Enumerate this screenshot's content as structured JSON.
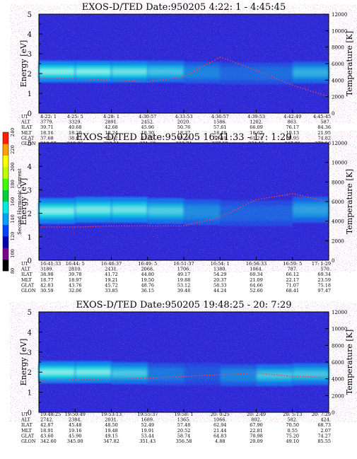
{
  "colors": {
    "background": "#2a2ad8",
    "band_core": "#d8fff0",
    "band_mid": "#10d8d8",
    "band_outer": "#1880f0",
    "temperature_dots": "#ff4040",
    "frame": "#000000"
  },
  "colorbar": {
    "label": "Second Harmonic Current",
    "ticks": [
      "80",
      "100",
      "120",
      "140",
      "160",
      "180",
      "200",
      "220",
      "240"
    ],
    "colors": [
      "#000000",
      "#7a0090",
      "#0000b0",
      "#0040ff",
      "#00a0ff",
      "#00e8e8",
      "#00d040",
      "#40ff00",
      "#c0ff00",
      "#ffff00",
      "#ffa000",
      "#ff2000"
    ]
  },
  "chart_data": [
    {
      "type": "heatmap",
      "title": "EXOS-D/TED   Date:950205  4:22: 1 - 4:45:45",
      "ylabel": "Energy [eV]",
      "y2label": "Temperature [K]",
      "ylim": [
        0,
        5
      ],
      "y2lim": [
        0,
        12000
      ],
      "yticks": [
        "0",
        "1",
        "2",
        "3",
        "4",
        "5"
      ],
      "y2ticks": [
        "0",
        "2000",
        "4000",
        "6000",
        "8000",
        "10000",
        "12000"
      ],
      "table_rows": [
        {
          "label": "UT",
          "values": [
            "4:22: 1",
            "4:25: 5",
            "4:28: 1",
            "4:30:57",
            "4:33:53",
            "4:36:57",
            "4:39:53",
            "4:42:49",
            "4:45:45"
          ]
        },
        {
          "label": "ALT",
          "values": [
            "3779.",
            "3329.",
            "2891.",
            "2452.",
            "2020.",
            "1586.",
            "1202.",
            "863.",
            "587."
          ]
        },
        {
          "label": "ILAT",
          "values": [
            "39.71",
            "40.68",
            "42.68",
            "45.96",
            "50.76",
            "57.61",
            "66.09",
            "76.17",
            "84.36"
          ]
        },
        {
          "label": "MLT",
          "values": [
            "18.16",
            "18.20",
            "18.24",
            "18.30",
            "18.37",
            "18.48",
            "18.67",
            "19.13",
            "21.95"
          ]
        },
        {
          "label": "GLAT",
          "values": [
            "37.68",
            "38.67",
            "40.62",
            "43.75",
            "48.16",
            "54.19",
            "61.24",
            "68.95",
            "74.82"
          ]
        },
        {
          "label": "GLON",
          "values": [
            "219.87",
            "219.96",
            "220.51",
            "221.68",
            "223.74",
            "227.50",
            "234.15",
            "247.91",
            "279.50"
          ]
        }
      ],
      "band_energy": [
        2.1,
        2.1,
        2.1,
        2.1,
        2.1,
        2.0,
        2.0,
        2.0,
        2.1
      ],
      "band_intensity": [
        0.95,
        0.95,
        0.9,
        0.75,
        0.5,
        0.25,
        0.25,
        0.3,
        0.75
      ],
      "temperature": [
        4200,
        4200,
        4000,
        3800,
        4400,
        6800,
        5200,
        3400,
        2000
      ]
    },
    {
      "type": "heatmap",
      "title": "EXOS-D/TED   Date:950205  16:41:33 - 17: 1:29",
      "ylabel": "Energy [eV]",
      "y2label": "Temperature [K]",
      "ylim": [
        0,
        5
      ],
      "y2lim": [
        0,
        12000
      ],
      "yticks": [
        "0",
        "1",
        "2",
        "3",
        "4",
        "5"
      ],
      "y2ticks": [
        "0",
        "2000",
        "4000",
        "6000",
        "8000",
        "10000",
        "12000"
      ],
      "table_rows": [
        {
          "label": "UT",
          "values": [
            "16:41:33",
            "16:44: 5",
            "16:46:37",
            "16:49: 5",
            "16:51:37",
            "16:54: 1",
            "16:56:33",
            "16:59: 5",
            "17: 1:29"
          ]
        },
        {
          "label": "ALT",
          "values": [
            "3189.",
            "2810.",
            "2431.",
            "2068.",
            "1706.",
            "1380.",
            "1064.",
            "787.",
            "570."
          ]
        },
        {
          "label": "ILAT",
          "values": [
            "38.98",
            "39.78",
            "41.72",
            "44.80",
            "49.17",
            "54.29",
            "60.34",
            "66.12",
            "69.34"
          ]
        },
        {
          "label": "MLT",
          "values": [
            "18.77",
            "18.97",
            "19.21",
            "19.50",
            "19.88",
            "20.37",
            "21.09",
            "22.17",
            "23.59"
          ]
        },
        {
          "label": "GLAT",
          "values": [
            "42.83",
            "43.76",
            "45.72",
            "48.76",
            "53.12",
            "58.33",
            "64.66",
            "71.07",
            "75.18"
          ]
        },
        {
          "label": "GLON",
          "values": [
            "30.59",
            "32.06",
            "33.85",
            "36.15",
            "39.48",
            "44.24",
            "52.60",
            "68.41",
            "97.47"
          ]
        }
      ],
      "band_energy": [
        2.1,
        2.1,
        2.2,
        2.1,
        2.1,
        2.0,
        2.0,
        2.0,
        2.3
      ],
      "band_intensity": [
        0.95,
        0.9,
        0.85,
        0.8,
        0.55,
        0.25,
        0.2,
        0.25,
        0.7
      ],
      "temperature": [
        3400,
        3400,
        3500,
        3500,
        3500,
        4400,
        6200,
        6800,
        6000
      ]
    },
    {
      "type": "heatmap",
      "title": "EXOS-D/TED   Date:950205  19:48:25 - 20: 7:29",
      "ylabel": "Energy [eV]",
      "y2label": "Temperature [K]",
      "ylim": [
        0,
        5
      ],
      "y2lim": [
        0,
        12000
      ],
      "yticks": [
        "0",
        "1",
        "2",
        "3",
        "4",
        "5"
      ],
      "y2ticks": [
        "0",
        "2000",
        "4000",
        "6000",
        "8000",
        "10000",
        "12000"
      ],
      "table_rows": [
        {
          "label": "UT",
          "values": [
            "19:48:25",
            "19:50:49",
            "19:53:13",
            "19:55:37",
            "19:58: 1",
            "20: 0:25",
            "20: 2:49",
            "20: 5:13",
            "20: 7:29"
          ]
        },
        {
          "label": "ALT",
          "values": [
            "2742.",
            "2384.",
            "2031.",
            "1689.",
            "1365.",
            "1066.",
            "802.",
            "582.",
            "424."
          ]
        },
        {
          "label": "ILAT",
          "values": [
            "42.87",
            "45.48",
            "48.50",
            "52.49",
            "57.48",
            "62.94",
            "67.90",
            "70.50",
            "68.73"
          ]
        },
        {
          "label": "MLT",
          "values": [
            "18.91",
            "19.16",
            "19.48",
            "19.91",
            "20.52",
            "21.44",
            "22.81",
            "0.55",
            "2.07"
          ]
        },
        {
          "label": "GLAT",
          "values": [
            "43.60",
            "45.90",
            "49.15",
            "53.44",
            "58.74",
            "64.83",
            "70.98",
            "75.20",
            "74.27"
          ]
        },
        {
          "label": "GLON",
          "values": [
            "342.60",
            "345.00",
            "347.82",
            "351.43",
            "356.58",
            "4.88",
            "20.09",
            "49.10",
            "85.55"
          ]
        }
      ],
      "band_energy": [
        2.0,
        2.0,
        2.0,
        1.9,
        1.9,
        1.9,
        1.8,
        1.9,
        1.9
      ],
      "band_intensity": [
        0.95,
        0.9,
        0.85,
        0.45,
        0.2,
        0.15,
        0.6,
        0.65,
        0.6
      ],
      "temperature": [
        3800,
        3900,
        4000,
        4100,
        4300,
        4500,
        4700,
        4300,
        4200
      ]
    }
  ]
}
